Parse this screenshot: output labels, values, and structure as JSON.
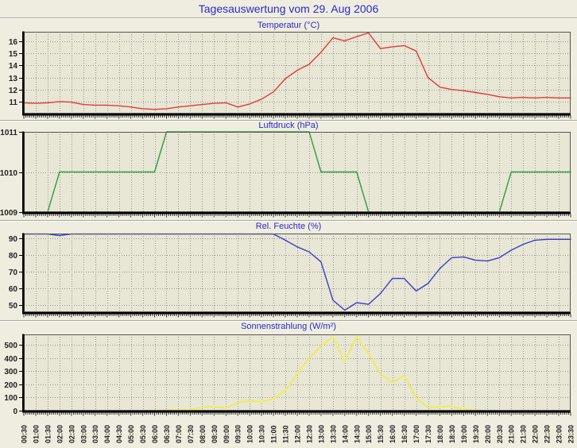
{
  "header": {
    "title": "Tagesauswertung vom 29. Aug 2006"
  },
  "colors": {
    "page_bg": "#EFEDDF",
    "plot_bg": "#E8E6D4",
    "grid": "#999999",
    "frame": "#555555",
    "axis": "#000000",
    "title_blue": "#2A2AC8",
    "tick_text": "#222222",
    "temperature_line": "#E03A3A",
    "pressure_line": "#2E9E44",
    "humidity_line": "#3B3BC8",
    "solar_line": "#EFEC60"
  },
  "chart_data": {
    "type": "line",
    "grid": "on",
    "categories": [
      "00:30",
      "01:00",
      "01:30",
      "02:00",
      "02:30",
      "03:00",
      "03:30",
      "04:00",
      "04:30",
      "05:00",
      "05:30",
      "06:00",
      "06:30",
      "07:00",
      "07:30",
      "08:00",
      "08:30",
      "09:00",
      "09:30",
      "10:00",
      "10:30",
      "11:00",
      "11:30",
      "12:00",
      "12:30",
      "13:00",
      "13:30",
      "14:00",
      "14:30",
      "15:00",
      "15:30",
      "16:00",
      "16:30",
      "17:00",
      "17:30",
      "18:00",
      "18:30",
      "19:00",
      "19:30",
      "20:00",
      "20:30",
      "21:00",
      "21:30",
      "22:00",
      "22:30",
      "23:00",
      "23:30"
    ],
    "subplots": [
      {
        "name": "temperature",
        "title": "Temperatur (°C)",
        "color": "#E03A3A",
        "line_width": 1.4,
        "ylim": [
          10,
          16.8
        ],
        "yticks": [
          11,
          12,
          13,
          14,
          15,
          16
        ],
        "values": [
          10.9,
          10.85,
          10.9,
          11.0,
          10.95,
          10.75,
          10.7,
          10.7,
          10.65,
          10.55,
          10.4,
          10.35,
          10.4,
          10.55,
          10.65,
          10.75,
          10.85,
          10.9,
          10.55,
          10.8,
          11.2,
          11.8,
          12.9,
          13.6,
          14.1,
          15.1,
          16.3,
          16.05,
          16.4,
          16.7,
          15.4,
          15.55,
          15.65,
          15.2,
          13.0,
          12.2,
          12.0,
          11.9,
          11.75,
          11.6,
          11.4,
          11.3,
          11.35,
          11.3,
          11.35,
          11.3,
          11.3
        ]
      },
      {
        "name": "pressure",
        "title": "Luftdruck (hPa)",
        "color": "#2E9E44",
        "line_width": 1.4,
        "ylim": [
          1009,
          1011
        ],
        "yticks": [
          1009,
          1010,
          1011
        ],
        "values": [
          1009,
          1009,
          1009,
          1010,
          1010,
          1010,
          1010,
          1010,
          1010,
          1010,
          1010,
          1010,
          1011,
          1011,
          1011,
          1011,
          1011,
          1011,
          1011,
          1011,
          1011,
          1011,
          1011,
          1011,
          1011,
          1010,
          1010,
          1010,
          1010,
          1009,
          1009,
          1009,
          1009,
          1009,
          1009,
          1009,
          1009,
          1009,
          1009,
          1009,
          1009,
          1010,
          1010,
          1010,
          1010,
          1010,
          1010
        ]
      },
      {
        "name": "humidity",
        "title": "Rel. Feuchte (%)",
        "color": "#3B3BC8",
        "line_width": 1.4,
        "ylim": [
          45.8,
          93
        ],
        "yticks": [
          50,
          60,
          70,
          80,
          90
        ],
        "values": [
          92.7,
          92.7,
          92.7,
          91.8,
          92.7,
          92.7,
          92.7,
          92.7,
          92.7,
          92.7,
          92.7,
          92.7,
          92.7,
          92.7,
          92.7,
          92.7,
          92.7,
          92.7,
          92.7,
          92.7,
          92.7,
          92.7,
          89,
          85,
          82,
          76,
          53,
          47,
          51.5,
          50.5,
          57,
          66,
          66,
          58.5,
          63,
          72,
          78.5,
          79,
          77,
          76.5,
          78.5,
          83,
          86.5,
          89,
          89.5,
          89.5,
          89.5
        ]
      },
      {
        "name": "solar-radiation",
        "title": "Sonnenstrahlung (W/m²)",
        "color": "#EFEC60",
        "line_width": 2,
        "ylim": [
          0,
          578
        ],
        "yticks": [
          0,
          100,
          200,
          300,
          400,
          500
        ],
        "values": [
          0,
          0,
          0,
          0,
          0,
          0,
          0,
          0,
          0,
          0,
          0,
          2,
          4,
          6,
          8,
          25,
          32,
          18,
          60,
          75,
          68,
          90,
          155,
          280,
          400,
          490,
          560,
          370,
          565,
          430,
          280,
          215,
          265,
          95,
          25,
          30,
          33,
          12,
          3,
          0,
          0,
          0,
          0,
          0,
          0,
          0,
          0
        ]
      }
    ]
  }
}
